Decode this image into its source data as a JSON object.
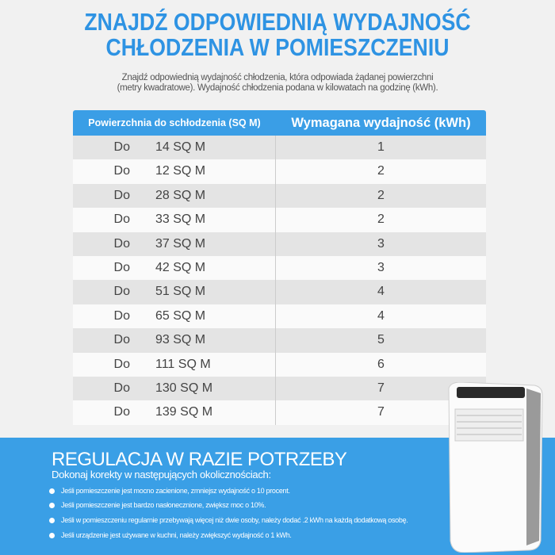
{
  "title": {
    "line1": "ZNAJDŹ ODPOWIEDNIĄ WYDAJNOŚĆ",
    "line2": "CHŁODZENIA W POMIESZCZENIU"
  },
  "subtitle": {
    "line1": "Znajdź odpowiednią wydajność chłodzenia, która odpowiada żądanej powierzchni",
    "line2": "(metry kwadratowe). Wydajność chłodzenia podana w kilowatach na godzinę (kWh)."
  },
  "table": {
    "headers": [
      "Powierzchnia do schłodzenia (SQ M)",
      "Wymagana wydajność (kWh)"
    ],
    "rows": [
      {
        "prefix": "Do",
        "area": "14 SQ M",
        "kwh": "1"
      },
      {
        "prefix": "Do",
        "area": "12 SQ M",
        "kwh": "2"
      },
      {
        "prefix": "Do",
        "area": "28 SQ M",
        "kwh": "2"
      },
      {
        "prefix": "Do",
        "area": "33 SQ M",
        "kwh": "2"
      },
      {
        "prefix": "Do",
        "area": "37 SQ M",
        "kwh": "3"
      },
      {
        "prefix": "Do",
        "area": "42 SQ M",
        "kwh": "3"
      },
      {
        "prefix": "Do",
        "area": "51 SQ M",
        "kwh": "4"
      },
      {
        "prefix": "Do",
        "area": "65 SQ M",
        "kwh": "4"
      },
      {
        "prefix": "Do",
        "area": "93 SQ M",
        "kwh": "5"
      },
      {
        "prefix": "Do",
        "area": "111 SQ M",
        "kwh": "6"
      },
      {
        "prefix": "Do",
        "area": "130 SQ M",
        "kwh": "7"
      },
      {
        "prefix": "Do",
        "area": "139 SQ M",
        "kwh": "7"
      }
    ]
  },
  "adjust": {
    "title": "REGULACJA W RAZIE POTRZEBY",
    "subtitle": "Dokonaj korekty w następujących okolicznościach:",
    "bullets": [
      "Jeśli pomieszczenie jest mocno zacienione, zmniejsz wydajność o 10 procent.",
      "Jeśli pomieszczenie jest bardzo nasłonecznione, zwiększ moc o 10%.",
      "Jeśli w pomieszczeniu regularnie przebywają więcej niż dwie osoby, należy dodać .2 kWh na każdą dodatkową osobę.",
      "Jeśli urządzenie jest używane w kuchni, należy zwiększyć wydajność o 1 kWh."
    ]
  },
  "colors": {
    "accent": "#3a9fe6",
    "title": "#2e93e3",
    "background": "#f1f1f1"
  }
}
